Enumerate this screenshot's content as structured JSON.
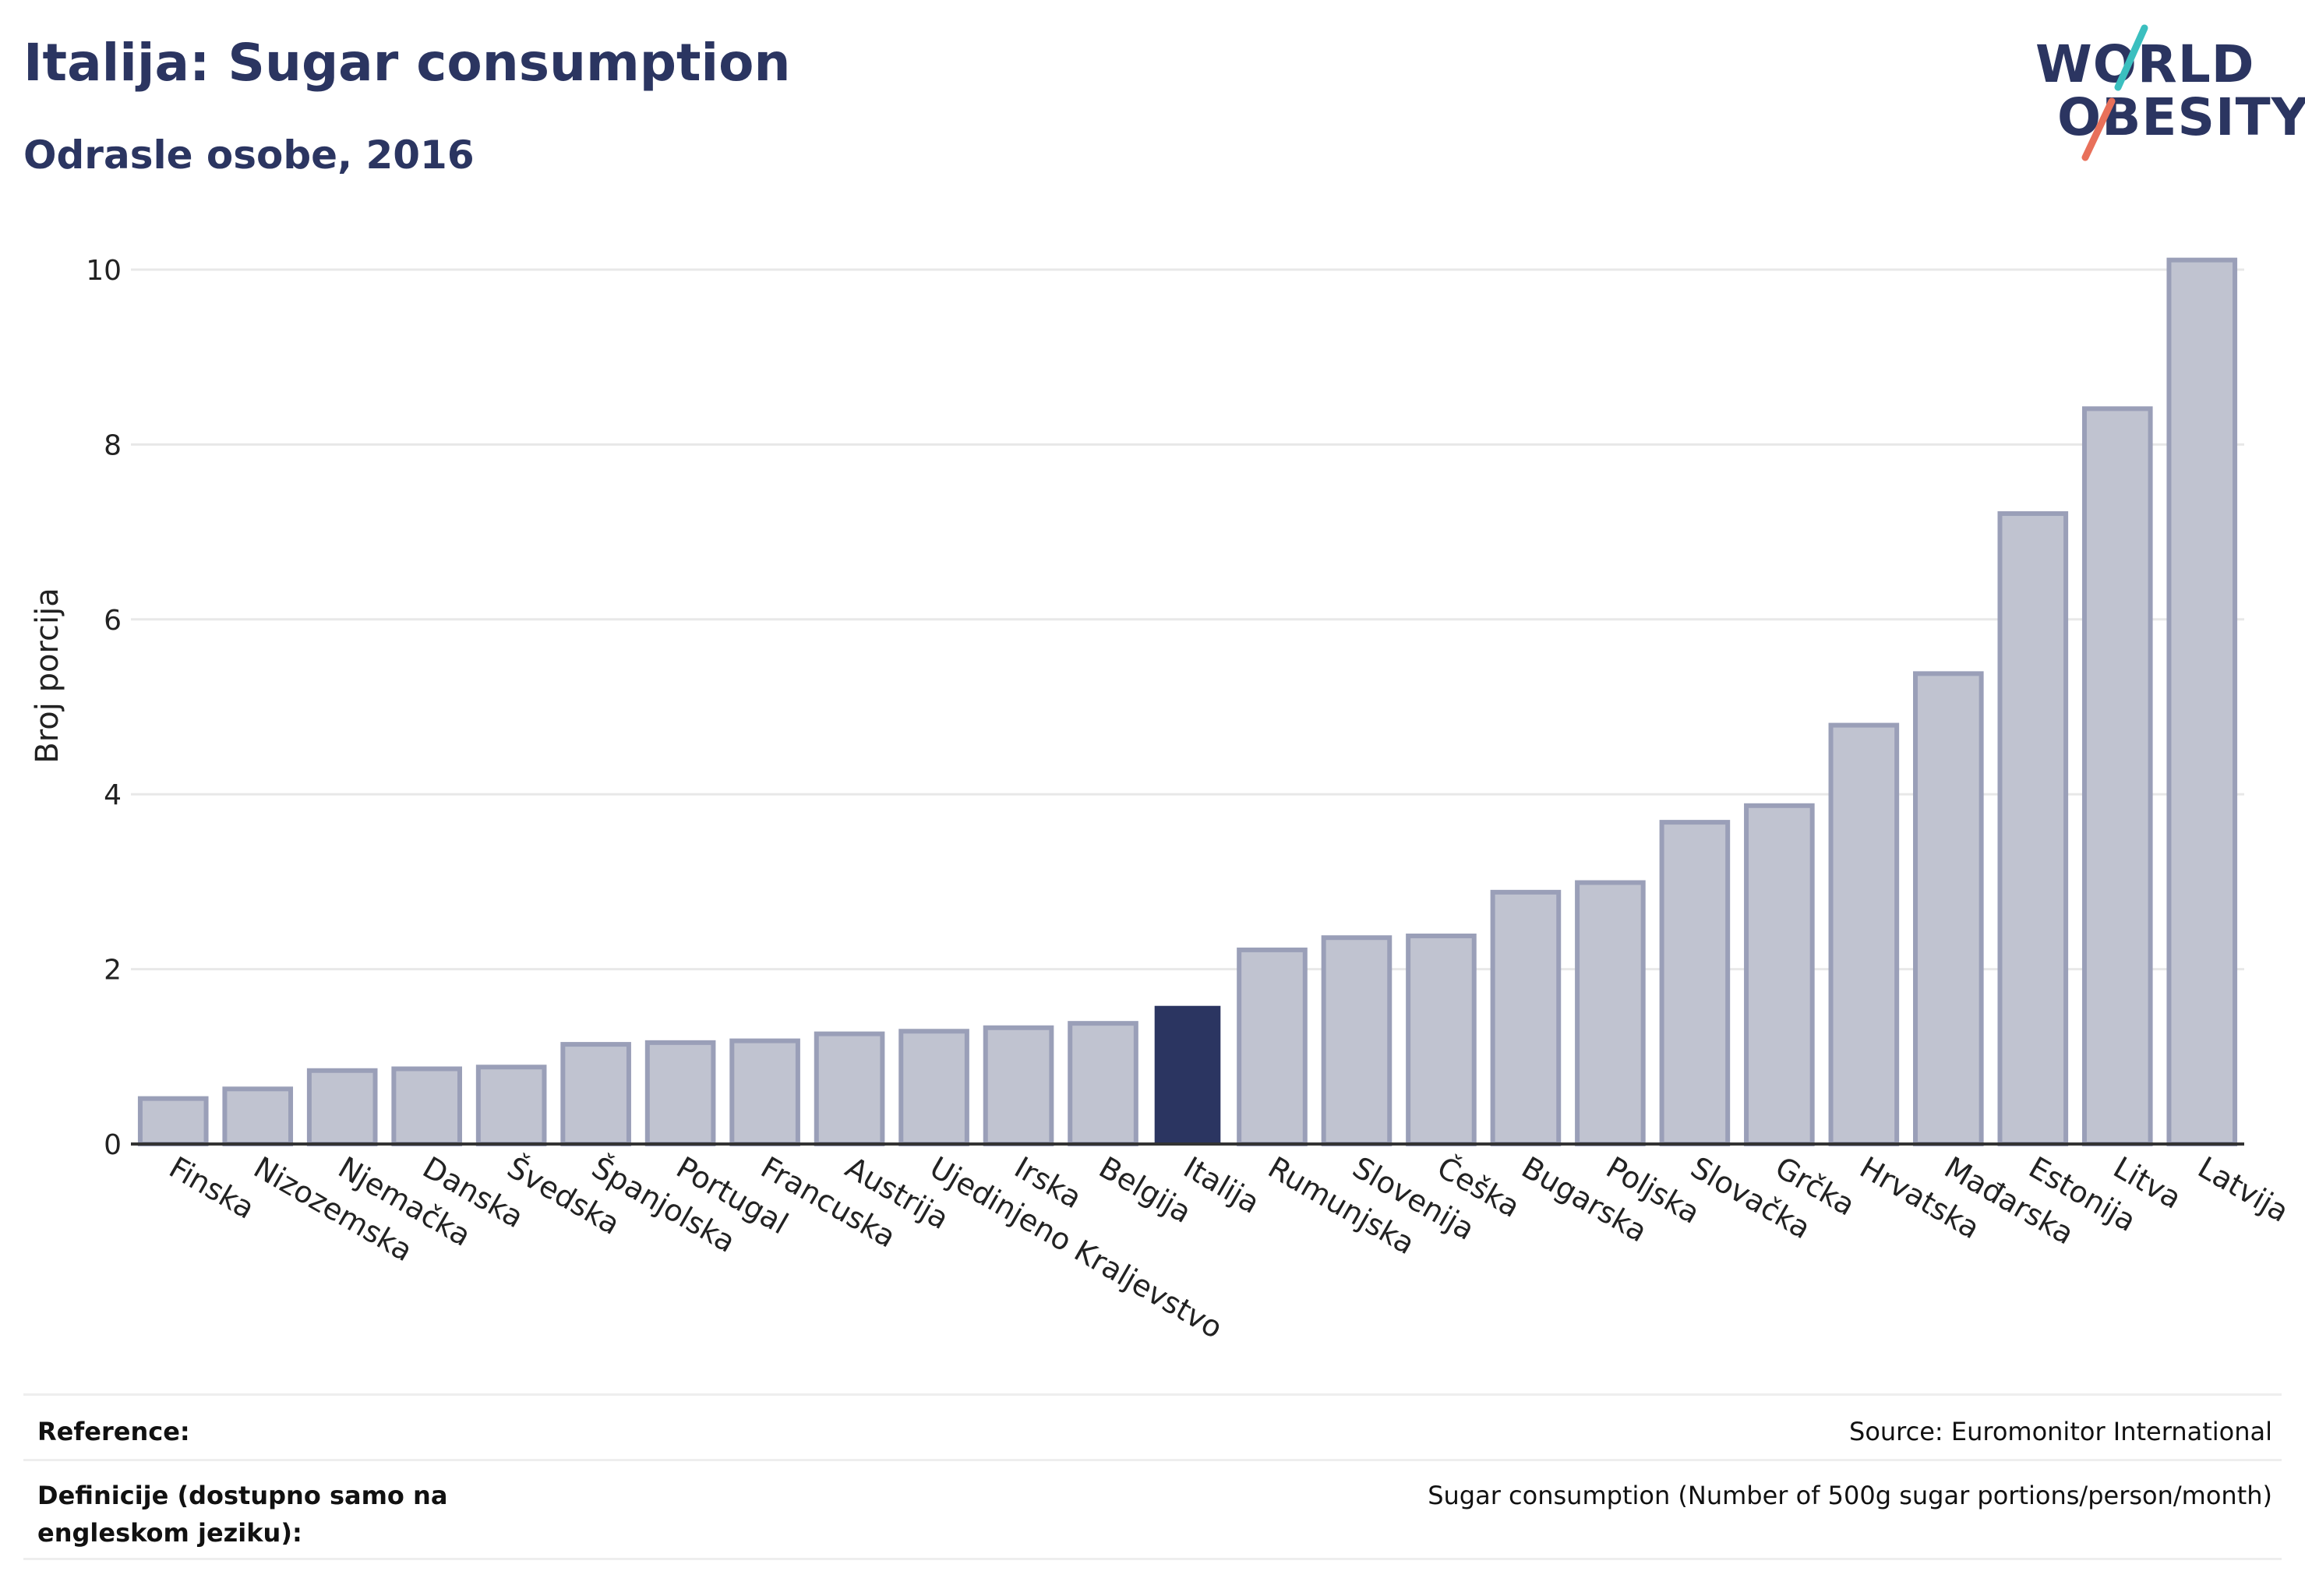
{
  "header": {
    "title": "Italija: Sugar consumption",
    "subtitle": "Odrasle osobe, 2016"
  },
  "logo": {
    "line1": "WORLD",
    "line2": "OBESITY",
    "icon": "world-obesity-logo",
    "slash_colors": [
      "#3bbfbf",
      "#e8705a"
    ]
  },
  "colors": {
    "bar": "#c0c3d0",
    "bar_stroke": "#9a9fb8",
    "highlight": "#2b3561",
    "grid": "#e8e8e8",
    "axis": "#333333"
  },
  "chart_data": {
    "type": "bar",
    "title": "Italija: Sugar consumption",
    "subtitle": "Odrasle osobe, 2016",
    "ylabel": "Broj porcija",
    "xlabel": "",
    "ylim": [
      0,
      10
    ],
    "yticks": [
      0,
      2,
      4,
      6,
      8,
      10
    ],
    "grid": true,
    "highlight": "Italija",
    "categories": [
      "Finska",
      "Nizozemska",
      "Njemačka",
      "Danska",
      "Švedska",
      "Španjolska",
      "Portugal",
      "Francuska",
      "Austrija",
      "Ujedinjeno Kraljevstvo",
      "Irska",
      "Belgija",
      "Italija",
      "Rumunjska",
      "Slovenija",
      "Češka",
      "Bugarska",
      "Poljska",
      "Slovačka",
      "Grčka",
      "Hrvatska",
      "Mađarska",
      "Estonija",
      "Litva",
      "Latvija"
    ],
    "values": [
      0.52,
      0.63,
      0.84,
      0.86,
      0.88,
      1.14,
      1.16,
      1.18,
      1.26,
      1.29,
      1.33,
      1.38,
      1.58,
      2.22,
      2.36,
      2.38,
      2.88,
      2.99,
      3.68,
      3.87,
      4.79,
      5.38,
      7.21,
      8.41,
      10.11
    ]
  },
  "footer": {
    "reference_label": "Reference:",
    "reference_value": "Source: Euromonitor International",
    "definition_label": "Definicije (dostupno samo na engleskom jeziku):",
    "definition_value": "Sugar consumption (Number of 500g sugar portions/person/month)"
  }
}
